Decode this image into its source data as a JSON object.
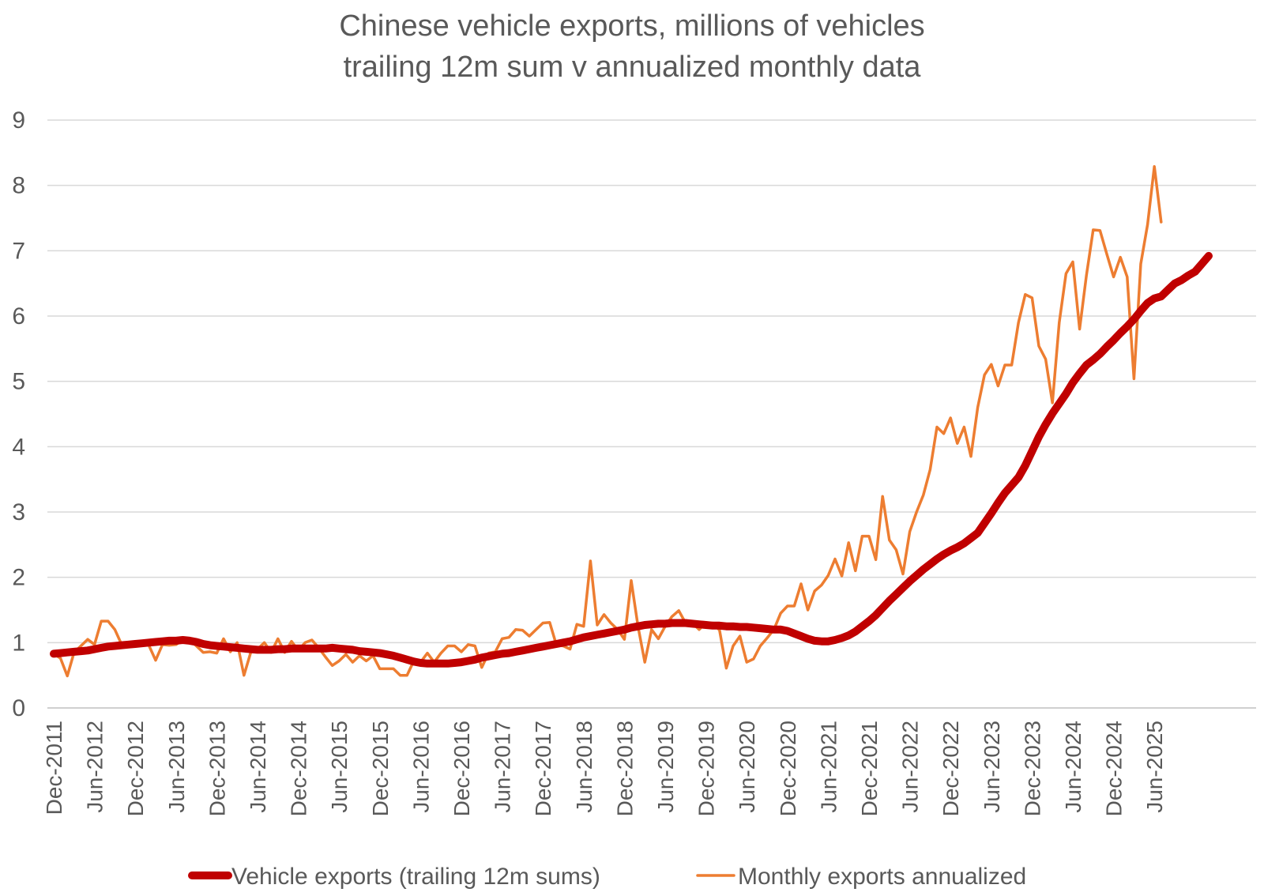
{
  "chart_data": {
    "type": "line",
    "title": "Chinese vehicle exports, millions of vehicles",
    "subtitle": "trailing 12m sum v annualized monthly data",
    "xlabel": "",
    "ylabel": "",
    "ylim": [
      0,
      9
    ],
    "y_ticks": [
      "0",
      "1",
      "2",
      "3",
      "4",
      "5",
      "6",
      "7",
      "8",
      "9"
    ],
    "grid": true,
    "legend_position": "bottom",
    "x_start": "Dec-2011",
    "x_ticks": [
      "Dec-2011",
      "Jun-2012",
      "Dec-2012",
      "Jun-2013",
      "Dec-2013",
      "Jun-2014",
      "Dec-2014",
      "Jun-2015",
      "Dec-2015",
      "Jun-2016",
      "Dec-2016",
      "Jun-2017",
      "Dec-2017",
      "Jun-2018",
      "Dec-2018",
      "Jun-2019",
      "Dec-2019",
      "Jun-2020",
      "Dec-2020",
      "Jun-2021",
      "Dec-2021",
      "Jun-2022",
      "Dec-2022",
      "Jun-2023",
      "Dec-2023",
      "Jun-2024",
      "Dec-2024",
      "Jun-2025"
    ],
    "series": [
      {
        "name": "Vehicle exports (trailing 12m sums)",
        "color": "#C00000",
        "values": [
          0.83,
          0.84,
          0.85,
          0.86,
          0.87,
          0.88,
          0.9,
          0.92,
          0.94,
          0.95,
          0.96,
          0.97,
          0.98,
          0.99,
          1.0,
          1.01,
          1.02,
          1.03,
          1.03,
          1.04,
          1.03,
          1.01,
          0.98,
          0.96,
          0.95,
          0.94,
          0.93,
          0.92,
          0.91,
          0.9,
          0.89,
          0.89,
          0.89,
          0.9,
          0.9,
          0.91,
          0.91,
          0.91,
          0.91,
          0.91,
          0.91,
          0.92,
          0.91,
          0.9,
          0.89,
          0.87,
          0.86,
          0.85,
          0.84,
          0.82,
          0.8,
          0.77,
          0.74,
          0.71,
          0.69,
          0.68,
          0.68,
          0.68,
          0.68,
          0.69,
          0.7,
          0.72,
          0.74,
          0.77,
          0.79,
          0.81,
          0.83,
          0.84,
          0.86,
          0.88,
          0.9,
          0.92,
          0.94,
          0.96,
          0.98,
          1.0,
          1.02,
          1.05,
          1.08,
          1.1,
          1.12,
          1.14,
          1.16,
          1.18,
          1.2,
          1.23,
          1.25,
          1.27,
          1.28,
          1.29,
          1.29,
          1.3,
          1.3,
          1.3,
          1.29,
          1.28,
          1.27,
          1.26,
          1.26,
          1.25,
          1.25,
          1.24,
          1.24,
          1.23,
          1.22,
          1.21,
          1.2,
          1.2,
          1.18,
          1.14,
          1.1,
          1.06,
          1.03,
          1.02,
          1.02,
          1.04,
          1.07,
          1.11,
          1.17,
          1.25,
          1.33,
          1.42,
          1.53,
          1.64,
          1.74,
          1.84,
          1.94,
          2.03,
          2.12,
          2.2,
          2.28,
          2.35,
          2.41,
          2.46,
          2.52,
          2.6,
          2.68,
          2.83,
          2.98,
          3.14,
          3.29,
          3.41,
          3.53,
          3.71,
          3.93,
          4.15,
          4.34,
          4.51,
          4.66,
          4.81,
          4.98,
          5.12,
          5.25,
          5.33,
          5.42,
          5.53,
          5.63,
          5.74,
          5.84,
          5.95,
          6.08,
          6.2,
          6.27,
          6.3,
          6.4,
          6.5,
          6.55,
          6.62,
          6.68,
          6.8,
          6.92
        ]
      },
      {
        "name": "Monthly exports annualized",
        "color": "#ED7D31",
        "values": [
          0.83,
          0.76,
          0.49,
          0.85,
          0.95,
          1.05,
          0.97,
          1.33,
          1.33,
          1.2,
          0.97,
          0.96,
          0.98,
          0.98,
          0.96,
          0.73,
          0.97,
          0.96,
          0.97,
          1.04,
          1.05,
          0.95,
          0.85,
          0.86,
          0.84,
          1.06,
          0.86,
          1.0,
          0.5,
          0.85,
          0.9,
          1.0,
          0.85,
          1.06,
          0.85,
          1.02,
          0.88,
          1.0,
          1.04,
          0.92,
          0.78,
          0.65,
          0.72,
          0.82,
          0.7,
          0.8,
          0.72,
          0.8,
          0.6,
          0.6,
          0.6,
          0.5,
          0.5,
          0.72,
          0.7,
          0.84,
          0.7,
          0.84,
          0.95,
          0.95,
          0.86,
          0.97,
          0.95,
          0.62,
          0.84,
          0.86,
          1.06,
          1.08,
          1.2,
          1.19,
          1.1,
          1.2,
          1.3,
          1.31,
          0.96,
          0.95,
          0.9,
          1.28,
          1.25,
          2.25,
          1.27,
          1.43,
          1.3,
          1.2,
          1.05,
          1.95,
          1.25,
          0.7,
          1.2,
          1.06,
          1.25,
          1.4,
          1.49,
          1.3,
          1.3,
          1.2,
          1.3,
          1.3,
          1.19,
          0.61,
          0.95,
          1.1,
          0.7,
          0.75,
          0.95,
          1.07,
          1.2,
          1.45,
          1.56,
          1.56,
          1.9,
          1.5,
          1.79,
          1.88,
          2.03,
          2.28,
          2.02,
          2.53,
          2.1,
          2.63,
          2.63,
          2.27,
          3.24,
          2.57,
          2.42,
          2.05,
          2.7,
          3.0,
          3.26,
          3.65,
          4.3,
          4.2,
          4.44,
          4.05,
          4.3,
          3.85,
          4.6,
          5.1,
          5.26,
          4.93,
          5.25,
          5.25,
          5.9,
          6.33,
          6.28,
          5.54,
          5.34,
          4.67,
          5.9,
          6.65,
          6.83,
          5.8,
          6.62,
          7.32,
          7.31,
          6.95,
          6.6,
          6.9,
          6.6,
          5.04,
          6.8,
          7.4,
          8.29,
          7.44
        ]
      }
    ]
  }
}
